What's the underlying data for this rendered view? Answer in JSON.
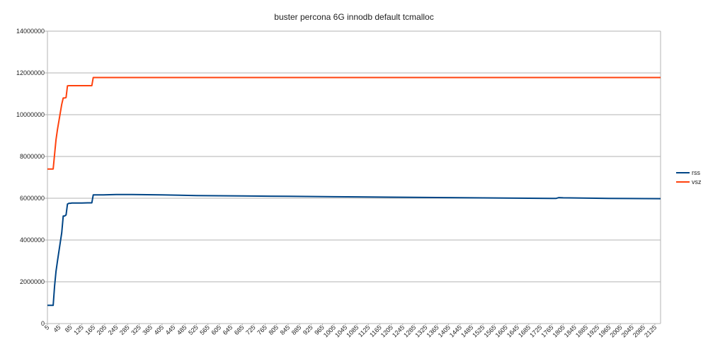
{
  "chart_data": {
    "type": "line",
    "title": "buster percona 6G innodb default tcmalloc",
    "xlabel": "",
    "ylabel": "",
    "ylim": [
      0,
      14000000
    ],
    "yticks": [
      "0",
      "2000000",
      "4000000",
      "6000000",
      "8000000",
      "10000000",
      "12000000",
      "14000000"
    ],
    "xlim": [
      5,
      2145
    ],
    "xticks": [
      "5",
      "45",
      "85",
      "125",
      "165",
      "205",
      "245",
      "285",
      "325",
      "365",
      "405",
      "445",
      "485",
      "525",
      "565",
      "605",
      "645",
      "685",
      "725",
      "765",
      "805",
      "845",
      "885",
      "925",
      "965",
      "1005",
      "1045",
      "1085",
      "1125",
      "1165",
      "1205",
      "1245",
      "1285",
      "1325",
      "1365",
      "1405",
      "1445",
      "1485",
      "1525",
      "1565",
      "1605",
      "1645",
      "1685",
      "1725",
      "1765",
      "1805",
      "1845",
      "1885",
      "1925",
      "1965",
      "2005",
      "2045",
      "2085",
      "2125"
    ],
    "grid": true,
    "legend_position": "right",
    "series": [
      {
        "name": "rss",
        "color": "#004586",
        "x": [
          5,
          25,
          30,
          35,
          40,
          45,
          50,
          55,
          60,
          65,
          70,
          75,
          80,
          85,
          90,
          95,
          100,
          105,
          110,
          125,
          145,
          160,
          165,
          200,
          245,
          300,
          405,
          525,
          685,
          845,
          1005,
          1205,
          1405,
          1605,
          1765,
          1780,
          1790,
          1805,
          1965,
          2145
        ],
        "values": [
          870000,
          870000,
          1800000,
          2500000,
          3000000,
          3450000,
          3900000,
          4350000,
          5150000,
          5150000,
          5200000,
          5720000,
          5760000,
          5760000,
          5770000,
          5770000,
          5770000,
          5770000,
          5770000,
          5770000,
          5780000,
          5780000,
          6160000,
          6160000,
          6180000,
          6180000,
          6160000,
          6130000,
          6110000,
          6090000,
          6070000,
          6050000,
          6030000,
          6010000,
          5990000,
          5990000,
          6030000,
          6020000,
          5990000,
          5980000
        ]
      },
      {
        "name": "vsz",
        "color": "#ff420e",
        "x": [
          5,
          25,
          30,
          35,
          40,
          45,
          50,
          55,
          60,
          65,
          70,
          75,
          80,
          85,
          90,
          95,
          100,
          105,
          110,
          125,
          145,
          160,
          165,
          2145
        ],
        "values": [
          7400000,
          7400000,
          8100000,
          8800000,
          9300000,
          9700000,
          10100000,
          10500000,
          10800000,
          10800000,
          10820000,
          11380000,
          11390000,
          11390000,
          11390000,
          11390000,
          11390000,
          11390000,
          11390000,
          11390000,
          11390000,
          11390000,
          11780000,
          11780000
        ]
      }
    ]
  }
}
